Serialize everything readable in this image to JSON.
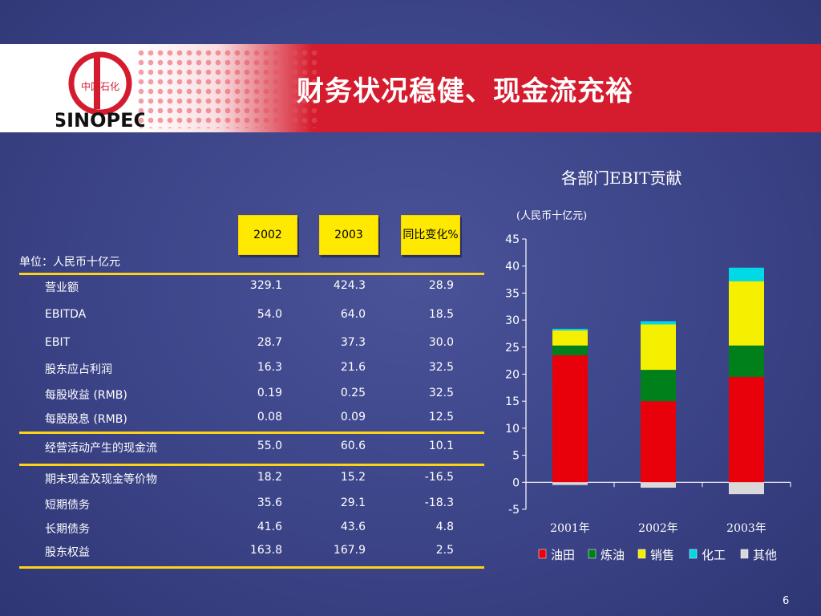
{
  "slide": {
    "title": "财务状况稳健、现金流充裕",
    "logo_text": "中国石化",
    "logo_word": "SINOPEC",
    "page_number": "6"
  },
  "table": {
    "unit": "单位：人民币十亿元",
    "headers": [
      "2002",
      "2003",
      "同比变化%"
    ],
    "rows": [
      {
        "label": "营业额",
        "v2002": "329.1",
        "v2003": "424.3",
        "change": "28.9"
      },
      {
        "label": "EBITDA",
        "v2002": "54.0",
        "v2003": "64.0",
        "change": "18.5"
      },
      {
        "label": "EBIT",
        "v2002": "28.7",
        "v2003": "37.3",
        "change": "30.0"
      },
      {
        "label": "股东应占利润",
        "v2002": "16.3",
        "v2003": "21.6",
        "change": "32.5"
      },
      {
        "label": "每股收益 (RMB)",
        "v2002": "0.19",
        "v2003": "0.25",
        "change": "32.5"
      },
      {
        "label": "每股股息 (RMB)",
        "v2002": "0.08",
        "v2003": "0.09",
        "change": "12.5"
      },
      {
        "label": "经营活动产生的现金流",
        "v2002": "55.0",
        "v2003": "60.6",
        "change": "10.1"
      },
      {
        "label": "期末现金及现金等价物",
        "v2002": "18.2",
        "v2003": "15.2",
        "change": "-16.5"
      },
      {
        "label": "短期债务",
        "v2002": "35.6",
        "v2003": "29.1",
        "change": "-18.3"
      },
      {
        "label": "长期债务",
        "v2002": "41.6",
        "v2003": "43.6",
        "change": "4.8"
      },
      {
        "label": "股东权益",
        "v2002": "163.8",
        "v2003": "167.9",
        "change": "2.5"
      }
    ]
  },
  "chart_data": {
    "type": "bar",
    "stacked": true,
    "title": "各部门EBIT贡献",
    "unit": "(人民币十亿元)",
    "categories": [
      "2001年",
      "2002年",
      "2003年"
    ],
    "ylim": [
      -5,
      45
    ],
    "yticks": [
      -5,
      0,
      5,
      10,
      15,
      20,
      25,
      30,
      35,
      40,
      45
    ],
    "legend_position": "bottom",
    "series": [
      {
        "name": "油田",
        "color": "#e8000b",
        "values": [
          23.5,
          15.0,
          19.5
        ]
      },
      {
        "name": "炼油",
        "color": "#00801a",
        "values": [
          1.8,
          5.8,
          5.8
        ]
      },
      {
        "name": "销售",
        "color": "#f5f000",
        "values": [
          2.8,
          8.4,
          11.9
        ]
      },
      {
        "name": "化工",
        "color": "#00d9e6",
        "values": [
          0.3,
          0.6,
          2.5
        ]
      },
      {
        "name": "其他",
        "color": "#d9d9d9",
        "values": [
          -0.5,
          -1.0,
          -2.2
        ]
      }
    ]
  }
}
